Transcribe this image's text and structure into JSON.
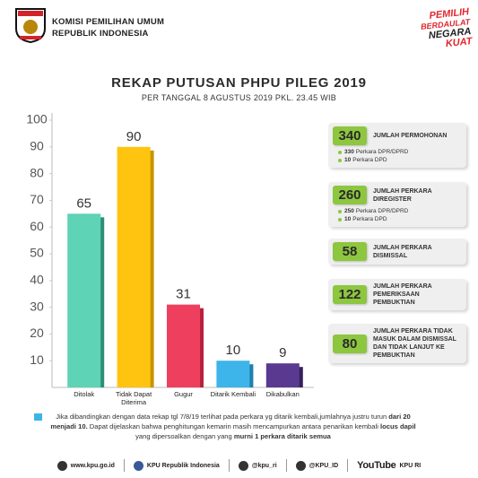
{
  "header": {
    "org_line1": "KOMISI PEMILIHAN UMUM",
    "org_line2": "REPUBLIK INDONESIA",
    "brand": [
      "PEMILIH",
      "BERDAULAT",
      "NEGARA",
      "KUAT"
    ]
  },
  "chart_data": {
    "type": "bar",
    "title": "REKAP PUTUSAN PHPU PILEG 2019",
    "subtitle": "PER TANGGAL 8 AGUSTUS 2019 PKL. 23.45 WIB",
    "categories": [
      "Ditolak",
      "Tidak Dapat Diterima",
      "Gugur",
      "Ditarik Kembali",
      "Dikabulkan"
    ],
    "values": [
      65,
      90,
      31,
      10,
      9
    ],
    "colors": [
      "#5ed3b5",
      "#ffc40f",
      "#ef3f5e",
      "#3db5ea",
      "#5a3a90"
    ],
    "shadow_colors": [
      "#2e8f74",
      "#c99400",
      "#b8213f",
      "#1f7fae",
      "#35205a"
    ],
    "ylim": [
      0,
      100
    ],
    "yticks": [
      10,
      20,
      30,
      40,
      50,
      60,
      70,
      80,
      90,
      100
    ]
  },
  "side_panel": [
    {
      "number": "340",
      "label": "JUMLAH PERMOHONAN",
      "bullets": [
        {
          "count": "330",
          "text": "Perkara DPR/DPRD"
        },
        {
          "count": "10",
          "text": "Perkara DPD"
        }
      ]
    },
    {
      "number": "260",
      "label": "JUMLAH PERKARA DIREGISTER",
      "bullets": [
        {
          "count": "250",
          "text": "Perkara DPR/DPRD"
        },
        {
          "count": "10",
          "text": "Perkara DPD"
        }
      ]
    },
    {
      "number": "58",
      "label": "JUMLAH PERKARA DISMISSAL"
    },
    {
      "number": "122",
      "label": "JUMLAH PERKARA PEMERIKSAAN PEMBUKTIAN"
    },
    {
      "number": "80",
      "label": "JUMLAH PERKARA TIDAK MASUK DALAM DISMISSAL DAN TIDAK LANJUT KE PEMBUKTIAN"
    }
  ],
  "footnote": [
    {
      "text": "Jika dibandingkan dengan data rekap tgl 7/8/19 terlihat pada perkara yg ditarik kembali,jumlahnya justru turun ",
      "bold": false
    },
    {
      "text": "dari 20 menjadi 10.",
      "bold": true
    },
    {
      "text": " Dapat dijelaskan bahwa penghitungan kemarin masih mencampurkan antara penarikan kembali ",
      "bold": false
    },
    {
      "text": "locus dapil",
      "bold": true
    },
    {
      "text": " yang dipersoalkan dengan yang ",
      "bold": false
    },
    {
      "text": "murni 1 perkara ditarik semua",
      "bold": true
    }
  ],
  "footer": {
    "website": "www.kpu.go.id",
    "facebook": "KPU Republik Indonesia",
    "twitter": "@kpu_ri",
    "instagram": "@KPU_ID",
    "youtube_logo": "YouTube",
    "youtube": "KPU RI"
  }
}
